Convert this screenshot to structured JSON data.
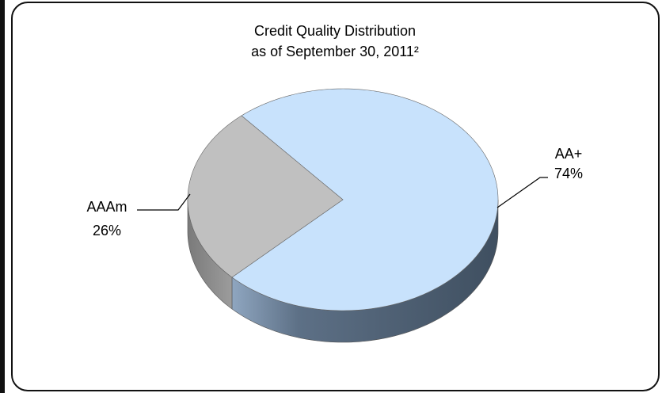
{
  "chart_data": {
    "type": "pie3d",
    "title": "Credit Quality Distribution",
    "subtitle": "as of September 30, 2011²",
    "categories": [
      "AA+",
      "AAAm"
    ],
    "values": [
      74,
      26
    ],
    "value_labels": [
      "74%",
      "26%"
    ],
    "colors": [
      "#c8e2fc",
      "#c0c0c0"
    ]
  }
}
